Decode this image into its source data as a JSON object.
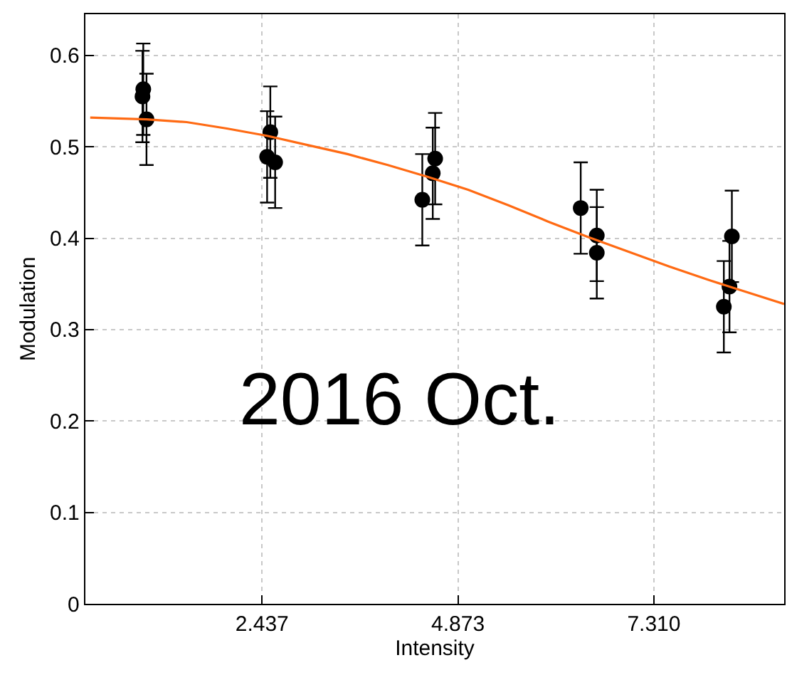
{
  "chart_data": {
    "type": "scatter",
    "xlabel": "Intensity",
    "ylabel": "Modulation",
    "xlim": [
      0.24,
      8.93
    ],
    "ylim": [
      0,
      0.645
    ],
    "xticks": [
      {
        "value": 2.437,
        "label": "2.437"
      },
      {
        "value": 4.873,
        "label": "4.873"
      },
      {
        "value": 7.31,
        "label": "7.310"
      }
    ],
    "yticks": [
      0,
      0.1,
      0.2,
      0.3,
      0.4,
      0.5,
      0.6
    ],
    "grid": true,
    "marker": "circle",
    "annotations": [
      "2016 Oct."
    ],
    "series": [
      {
        "color": "#000000",
        "x": [
          0.96,
          0.95,
          1.0,
          2.54,
          2.5,
          2.6,
          4.43,
          4.56,
          4.59,
          6.4,
          6.6,
          6.6,
          8.18,
          8.25,
          8.28
        ],
        "values": [
          0.563,
          0.555,
          0.53,
          0.516,
          0.489,
          0.483,
          0.442,
          0.471,
          0.487,
          0.433,
          0.403,
          0.384,
          0.325,
          0.347,
          0.402
        ],
        "errors": [
          0.05,
          0.05,
          0.05,
          0.05,
          0.05,
          0.05,
          0.05,
          0.05,
          0.05,
          0.05,
          0.05,
          0.05,
          0.05,
          0.05,
          0.05
        ]
      },
      {
        "type": "line",
        "color": "#ff6a13",
        "marker": "none",
        "x": [
          0.3,
          1.0,
          1.5,
          2.0,
          2.5,
          3.0,
          3.5,
          4.0,
          4.5,
          5.0,
          5.5,
          6.0,
          6.5,
          7.0,
          7.5,
          8.0,
          8.5,
          8.93
        ],
        "values": [
          0.532,
          0.53,
          0.527,
          0.52,
          0.512,
          0.502,
          0.492,
          0.48,
          0.467,
          0.453,
          0.436,
          0.418,
          0.401,
          0.385,
          0.369,
          0.354,
          0.34,
          0.328
        ]
      }
    ]
  }
}
